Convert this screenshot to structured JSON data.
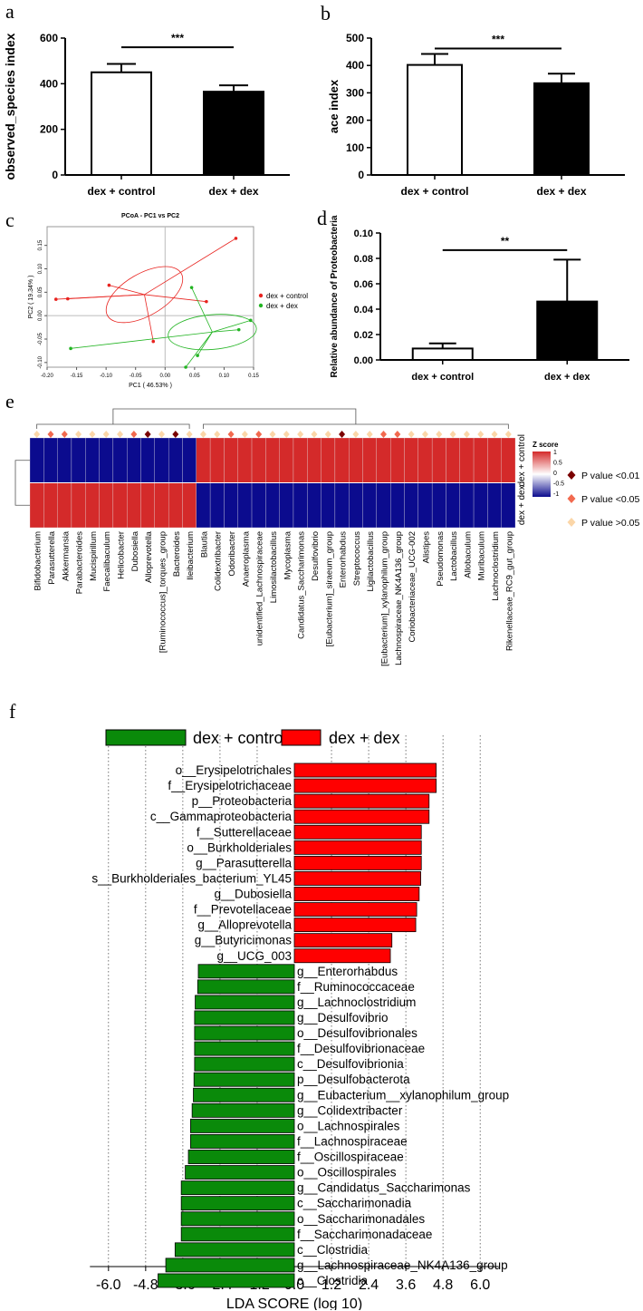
{
  "panels": {
    "a": "a",
    "b": "b",
    "c": "c",
    "d": "d",
    "e": "e",
    "f": "f"
  },
  "colors": {
    "black": "#000000",
    "pcoa_red": "#e8231f",
    "pcoa_green": "#22b422",
    "heat_red": "#d42a2a",
    "heat_blue": "#0b0b8e",
    "lda_red": "#ff0000",
    "lda_green": "#0a8a0a",
    "p001": "#7a0000",
    "p005": "#f26a4f",
    "pns": "#fbd6a8"
  },
  "chart_data": [
    {
      "id": "a",
      "type": "bar",
      "categories": [
        "dex + control",
        "dex + dex"
      ],
      "values": [
        450,
        365
      ],
      "errors": [
        37,
        28
      ],
      "fills": [
        "#ffffff",
        "#000000"
      ],
      "ylabel": "observed_species index",
      "ylim": [
        0,
        600
      ],
      "yticks": [
        "0",
        "200",
        "400",
        "600"
      ],
      "yticks_values": [
        0,
        200,
        400,
        600
      ],
      "significance": "***"
    },
    {
      "id": "b",
      "type": "bar",
      "categories": [
        "dex + control",
        "dex + dex"
      ],
      "values": [
        402,
        335
      ],
      "errors": [
        40,
        35
      ],
      "fills": [
        "#ffffff",
        "#000000"
      ],
      "ylabel": "ace index",
      "ylim": [
        0,
        500
      ],
      "yticks": [
        "0",
        "100",
        "200",
        "300",
        "400",
        "500"
      ],
      "yticks_values": [
        0,
        100,
        200,
        300,
        400,
        500
      ],
      "significance": "***"
    },
    {
      "id": "c",
      "type": "scatter",
      "title": "PCoA - PC1 vs PC2",
      "xlabel": "PC1 ( 46.53% )",
      "ylabel": "PC2 ( 19.34% )",
      "xlim": [
        -0.2,
        0.15
      ],
      "ylim": [
        -0.11,
        0.19
      ],
      "xticks": [
        "-0.20",
        "-0.15",
        "-0.10",
        "-0.05",
        "0.00",
        "0.05",
        "0.10",
        "0.15"
      ],
      "xticks_values": [
        -0.2,
        -0.15,
        -0.1,
        -0.05,
        0.0,
        0.05,
        0.1,
        0.15
      ],
      "yticks": [
        "-0.10",
        "-0.05",
        "0.00",
        "0.05",
        "0.10",
        "0.15"
      ],
      "yticks_values": [
        -0.1,
        -0.05,
        0.0,
        0.05,
        0.1,
        0.15
      ],
      "legend": [
        "dex + control",
        "dex + dex"
      ],
      "series": [
        {
          "name": "dex + control",
          "color": "#e8231f",
          "centroid": [
            -0.035,
            0.045
          ],
          "ellipse": {
            "rx": 0.072,
            "ry": 0.045,
            "angle_deg": 30
          },
          "points": [
            [
              -0.185,
              0.035
            ],
            [
              -0.165,
              0.036
            ],
            [
              -0.095,
              0.065
            ],
            [
              0.12,
              0.165
            ],
            [
              0.07,
              0.03
            ],
            [
              -0.02,
              -0.055
            ]
          ]
        },
        {
          "name": "dex + dex",
          "color": "#22b422",
          "centroid": [
            0.08,
            -0.035
          ],
          "ellipse": {
            "rx": 0.075,
            "ry": 0.037,
            "angle_deg": 5
          },
          "points": [
            [
              -0.16,
              -0.07
            ],
            [
              0.045,
              0.06
            ],
            [
              0.145,
              -0.01
            ],
            [
              0.055,
              -0.085
            ],
            [
              0.035,
              -0.11
            ],
            [
              0.125,
              -0.03
            ]
          ]
        }
      ]
    },
    {
      "id": "d",
      "type": "bar",
      "categories": [
        "dex + control",
        "dex + dex"
      ],
      "values": [
        0.009,
        0.046
      ],
      "errors": [
        0.004,
        0.033
      ],
      "fills": [
        "#ffffff",
        "#000000"
      ],
      "ylabel": "Relative abundance of Proteobacteria",
      "ylim": [
        0,
        0.1
      ],
      "yticks": [
        "0.00",
        "0.02",
        "0.04",
        "0.06",
        "0.08",
        "0.10"
      ],
      "yticks_values": [
        0,
        0.02,
        0.04,
        0.06,
        0.08,
        0.1
      ],
      "significance": "**"
    },
    {
      "id": "e",
      "type": "heatmap",
      "rows": [
        "dex + control",
        "dex + dex"
      ],
      "columns": [
        "Bifidobacterium",
        "Parasutterella",
        "Akkermansia",
        "Parabacteroides",
        "Mucispirillum",
        "Faecalibaculum",
        "Helicobacter",
        "Dubosiella",
        "Alloprevotella",
        "[Ruminococcus]_torques_group",
        "Bacteroides",
        "Ileibacterium",
        "Blautia",
        "Colidextribacter",
        "Odoribacter",
        "Anaeroplasma",
        "unidentified_Lachnospiraceae",
        "Limosilactobacillus",
        "Mycoplasma",
        "Candidatus_Saccharimonas",
        "Desulfovibrio",
        "[Eubacterium]_siraeum_group",
        "Enterorhabdus",
        "Streptococcus",
        "Ligilactobacillus",
        "[Eubacterium]_xylanophilum_group",
        "Lachnospiraceae_NK4A136_group",
        "Coriobacteriaceae_UCG-002",
        "Alistipes",
        "Pseudomonas",
        "Lactobacillus",
        "Allobaculum",
        "Muribaculum",
        "Lachnoclostridium",
        "Rikenellaceae_RC9_gut_group"
      ],
      "zscore_control": [
        -1,
        -1,
        -1,
        -1,
        -1,
        -1,
        -1,
        -1,
        -1,
        -1,
        -1,
        -1,
        1,
        1,
        1,
        1,
        1,
        1,
        1,
        1,
        1,
        1,
        1,
        1,
        1,
        1,
        1,
        1,
        1,
        1,
        1,
        1,
        1,
        1,
        1
      ],
      "pvalue_class": [
        "ns",
        "005",
        "005",
        "ns",
        "ns",
        "ns",
        "ns",
        "005",
        "001",
        "ns",
        "001",
        "ns",
        "ns",
        "ns",
        "005",
        "ns",
        "005",
        "ns",
        "ns",
        "ns",
        "ns",
        "ns",
        "001",
        "ns",
        "ns",
        "005",
        "005",
        "ns",
        "ns",
        "ns",
        "ns",
        "ns",
        "ns",
        "ns",
        "ns"
      ],
      "colorbar_title": "Z score",
      "colorbar_ticks": [
        "1",
        "0.5",
        "0",
        "-0.5",
        "-1"
      ],
      "legend": [
        "P value <0.01",
        "P value <0.05",
        "P value >0.05"
      ]
    },
    {
      "id": "f",
      "type": "bar",
      "orientation": "horizontal",
      "xlabel": "LDA SCORE (log 10)",
      "xlim": [
        -6.6,
        6.6
      ],
      "xticks": [
        "-6.0",
        "-4.8",
        "-3.6",
        "-2.4",
        "-1.2",
        "0.0",
        "1.2",
        "2.4",
        "3.6",
        "4.8",
        "6.0"
      ],
      "xticks_values": [
        -6.0,
        -4.8,
        -3.6,
        -2.4,
        -1.2,
        0.0,
        1.2,
        2.4,
        3.6,
        4.8,
        6.0
      ],
      "legend": [
        "dex + control",
        "dex + dex"
      ],
      "bars": [
        {
          "label": "o__Erysipelotrichales",
          "value": 4.58,
          "group": "dex + dex"
        },
        {
          "label": "f__Erysipelotrichaceae",
          "value": 4.58,
          "group": "dex + dex"
        },
        {
          "label": "p__Proteobacteria",
          "value": 4.35,
          "group": "dex + dex"
        },
        {
          "label": "c__Gammaproteobacteria",
          "value": 4.35,
          "group": "dex + dex"
        },
        {
          "label": "f__Sutterellaceae",
          "value": 4.1,
          "group": "dex + dex"
        },
        {
          "label": "o__Burkholderiales",
          "value": 4.1,
          "group": "dex + dex"
        },
        {
          "label": "g__Parasutterella",
          "value": 4.1,
          "group": "dex + dex"
        },
        {
          "label": "s__Burkholderiales_bacterium_YL45",
          "value": 4.08,
          "group": "dex + dex"
        },
        {
          "label": "g__Dubosiella",
          "value": 4.03,
          "group": "dex + dex"
        },
        {
          "label": "f__Prevotellaceae",
          "value": 3.95,
          "group": "dex + dex"
        },
        {
          "label": "g__Alloprevotella",
          "value": 3.92,
          "group": "dex + dex"
        },
        {
          "label": "g__Butyricimonas",
          "value": 3.15,
          "group": "dex + dex"
        },
        {
          "label": "g__UCG_003",
          "value": 3.1,
          "group": "dex + dex"
        },
        {
          "label": "g__Enterorhabdus",
          "value": -3.1,
          "group": "dex + control"
        },
        {
          "label": "f__Ruminococcaceae",
          "value": -3.12,
          "group": "dex + control"
        },
        {
          "label": "g__Lachnoclostridium",
          "value": -3.2,
          "group": "dex + control"
        },
        {
          "label": "g__Desulfovibrio",
          "value": -3.22,
          "group": "dex + control"
        },
        {
          "label": "o__Desulfovibrionales",
          "value": -3.22,
          "group": "dex + control"
        },
        {
          "label": "f__Desulfovibrionaceae",
          "value": -3.22,
          "group": "dex + control"
        },
        {
          "label": "c__Desulfovibrionia",
          "value": -3.22,
          "group": "dex + control"
        },
        {
          "label": "p__Desulfobacterota",
          "value": -3.24,
          "group": "dex + control"
        },
        {
          "label": "g__Eubacterium__xylanophilum_group",
          "value": -3.26,
          "group": "dex + control"
        },
        {
          "label": "g__Colidextribacter",
          "value": -3.3,
          "group": "dex + control"
        },
        {
          "label": "o__Lachnospirales",
          "value": -3.35,
          "group": "dex + control"
        },
        {
          "label": "f__Lachnospiraceae",
          "value": -3.35,
          "group": "dex + control"
        },
        {
          "label": "f__Oscillospiraceae",
          "value": -3.42,
          "group": "dex + control"
        },
        {
          "label": "o__Oscillospirales",
          "value": -3.52,
          "group": "dex + control"
        },
        {
          "label": "g__Candidatus_Saccharimonas",
          "value": -3.65,
          "group": "dex + control"
        },
        {
          "label": "c__Saccharimonadia",
          "value": -3.65,
          "group": "dex + control"
        },
        {
          "label": "o__Saccharimonadales",
          "value": -3.65,
          "group": "dex + control"
        },
        {
          "label": "f__Saccharimonadaceae",
          "value": -3.65,
          "group": "dex + control"
        },
        {
          "label": "c__Clostridia",
          "value": -3.85,
          "group": "dex + control"
        },
        {
          "label": "g__Lachnospiraceae_NK4A136_group",
          "value": -4.15,
          "group": "dex + control"
        },
        {
          "label": "c__Clostridia",
          "value": -4.4,
          "group": "dex + control"
        }
      ]
    }
  ]
}
